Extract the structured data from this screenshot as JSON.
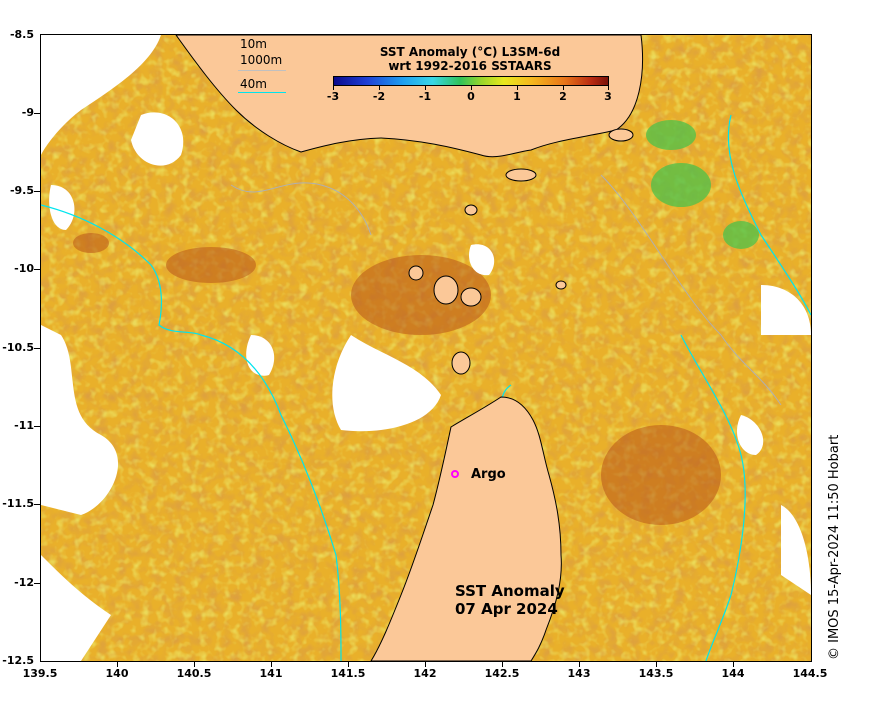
{
  "legend": {
    "title_line1": "SST Anomaly (°C) L3SM-6d",
    "title_line2": "wrt 1992-2016 SSTAARS",
    "ticks": [
      "-3",
      "-2",
      "-1",
      "0",
      "1",
      "2",
      "3"
    ]
  },
  "depth_key": {
    "d10": "10m",
    "d1000": "1000m",
    "d40": "40m",
    "c1000": "#c0c0c0",
    "c40": "#00e5ee"
  },
  "y_axis": [
    "-8.5",
    "-9",
    "-9.5",
    "-10",
    "-10.5",
    "-11",
    "-11.5",
    "-12",
    "-12.5"
  ],
  "x_axis": [
    "139.5",
    "140",
    "140.5",
    "141",
    "141.5",
    "142",
    "142.5",
    "143",
    "143.5",
    "144",
    "144.5"
  ],
  "marker": {
    "label": "Argo",
    "color": "#ff00ff"
  },
  "map_title": {
    "line1": "SST Anomaly",
    "line2": "07 Apr 2024"
  },
  "credit": "© IMOS 15-Apr-2024 11:50 Hobart",
  "colors": {
    "land": "#fbc898",
    "sea_base": "#e9b02a",
    "no_data": "#ffffff"
  }
}
